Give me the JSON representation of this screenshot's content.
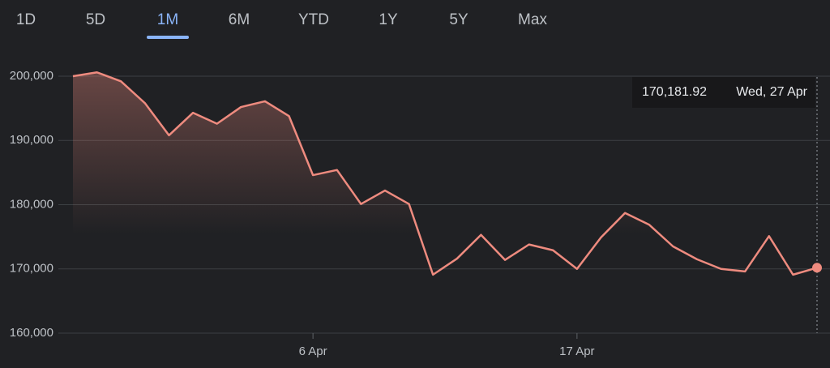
{
  "tabs": [
    "1D",
    "5D",
    "1M",
    "6M",
    "YTD",
    "1Y",
    "5Y",
    "Max"
  ],
  "selected_tab": 2,
  "chart_data": {
    "type": "line",
    "categories": [
      null,
      null,
      null,
      null,
      null,
      null,
      null,
      null,
      null,
      null,
      "6 Apr",
      null,
      null,
      null,
      null,
      null,
      null,
      null,
      null,
      null,
      null,
      "17 Apr",
      null,
      null,
      null,
      null,
      null,
      null,
      null,
      null,
      null,
      null
    ],
    "series": [
      {
        "color": "#ee8b7f",
        "values": [
          200000,
          200600,
          199200,
          195800,
          190800,
          194300,
          192600,
          195200,
          196100,
          193800,
          184600,
          185400,
          180100,
          182200,
          180100,
          169100,
          171600,
          175300,
          171400,
          173800,
          172900,
          170000,
          174900,
          178700,
          176900,
          173500,
          171500,
          170000,
          169600,
          175100,
          169100,
          170181.92
        ]
      }
    ],
    "ylim": [
      160000,
      203000
    ],
    "yticks": [
      {
        "value": 160000,
        "label": "160,000"
      },
      {
        "value": 170000,
        "label": "170,000"
      },
      {
        "value": 180000,
        "label": "180,000"
      },
      {
        "value": 190000,
        "label": "190,000"
      },
      {
        "value": 200000,
        "label": "200,000"
      }
    ],
    "grid": true,
    "tooltip": {
      "value": "170,181.92",
      "date": "Wed, 27 Apr"
    }
  }
}
